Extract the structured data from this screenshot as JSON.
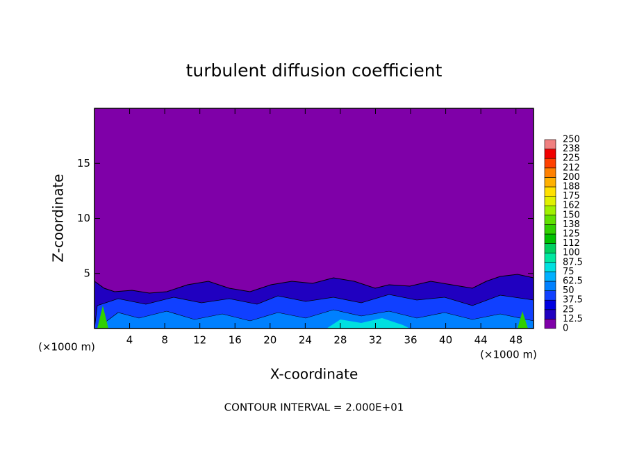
{
  "chart_data": {
    "type": "contour",
    "title": "turbulent diffusion coefficient",
    "x_label": "X-coordinate",
    "y_label": "Z-coordinate",
    "x_unit": "(×1000 m)",
    "footer": "CONTOUR INTERVAL = 2.000E+01",
    "xlim": [
      0,
      50
    ],
    "xticks": [
      4,
      8,
      12,
      16,
      20,
      24,
      28,
      32,
      36,
      40,
      44,
      48
    ],
    "ylim": [
      0,
      20
    ],
    "yticks": [
      5,
      10,
      15
    ],
    "colorbar": {
      "levels": [
        0,
        12.5,
        25,
        37.5,
        50,
        62.5,
        75,
        87.5,
        100,
        112,
        125,
        138,
        150,
        162,
        175,
        188,
        200,
        212,
        225,
        238,
        250
      ],
      "colors": [
        "#7f00a8",
        "#2000c0",
        "#0000e0",
        "#1040ff",
        "#0080ff",
        "#00b0ff",
        "#00e0e0",
        "#00e8a0",
        "#00d060",
        "#00c000",
        "#30d000",
        "#60e000",
        "#a0f000",
        "#e0f000",
        "#ffe000",
        "#ffb000",
        "#ff8000",
        "#ff4000",
        "#f00000",
        "#f08080"
      ]
    }
  }
}
